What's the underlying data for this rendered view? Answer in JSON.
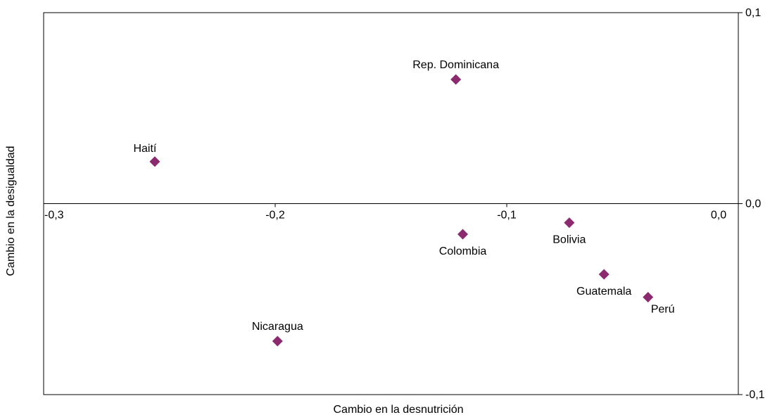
{
  "chart_data": {
    "type": "scatter",
    "title": "",
    "xlabel": "Cambio en la desnutrición",
    "ylabel": "Cambio en la desigualdad",
    "xlim": [
      -0.3,
      0.0
    ],
    "ylim": [
      -0.1,
      0.1
    ],
    "x_ticks": [
      {
        "value": -0.3,
        "label": "-0,3"
      },
      {
        "value": -0.2,
        "label": "-0,2"
      },
      {
        "value": -0.1,
        "label": "-0,1"
      },
      {
        "value": 0.0,
        "label": "0,0"
      }
    ],
    "y_ticks": [
      {
        "value": 0.1,
        "label": "0,1"
      },
      {
        "value": 0.0,
        "label": "0,0"
      },
      {
        "value": -0.1,
        "label": "-0,1"
      }
    ],
    "grid": false,
    "marker_color": "#8b2a6f",
    "points": [
      {
        "label": "Rep. Dominicana",
        "x": -0.122,
        "y": 0.065,
        "label_pos": "above"
      },
      {
        "label": "Haití",
        "x": -0.252,
        "y": 0.022,
        "label_pos": "above-left"
      },
      {
        "label": "Colombia",
        "x": -0.119,
        "y": -0.016,
        "label_pos": "below"
      },
      {
        "label": "Bolivia",
        "x": -0.073,
        "y": -0.01,
        "label_pos": "below"
      },
      {
        "label": "Guatemala",
        "x": -0.058,
        "y": -0.037,
        "label_pos": "below"
      },
      {
        "label": "Perú",
        "x": -0.039,
        "y": -0.049,
        "label_pos": "below-right"
      },
      {
        "label": "Nicaragua",
        "x": -0.199,
        "y": -0.072,
        "label_pos": "above"
      }
    ]
  }
}
